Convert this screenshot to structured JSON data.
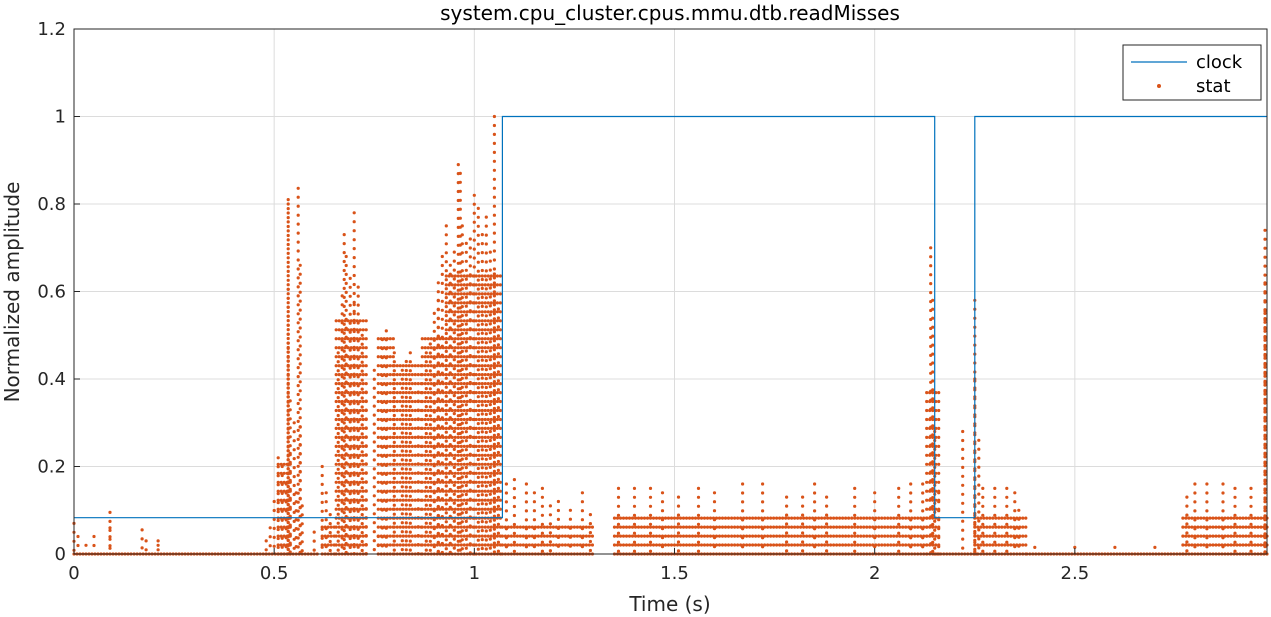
{
  "chart_data": {
    "type": "scatter",
    "title": "system.cpu_cluster.cpus.mmu.dtb.readMisses",
    "xlabel": "Time (s)",
    "ylabel": "Normalized amplitude",
    "xlim": [
      0,
      2.98
    ],
    "ylim": [
      0,
      1.2
    ],
    "x_ticks": [
      0,
      0.5,
      1,
      1.5,
      2,
      2.5
    ],
    "x_tick_labels": [
      "0",
      "0.5",
      "1",
      "1.5",
      "2",
      "2.5"
    ],
    "y_ticks": [
      0,
      0.2,
      0.4,
      0.6,
      0.8,
      1,
      1.2
    ],
    "y_tick_labels": [
      "0",
      "0.2",
      "0.4",
      "0.6",
      "0.8",
      "1",
      "1.2"
    ],
    "grid": true,
    "legend_position": "top-right",
    "colors": {
      "clock": "#0072BD",
      "stat": "#D95319"
    },
    "series": [
      {
        "name": "clock",
        "style": "step-line",
        "x": [
          0,
          1.07,
          1.07,
          2.15,
          2.15,
          2.25,
          2.25,
          2.98
        ],
        "values": [
          0.083,
          0.083,
          1,
          1,
          0.083,
          0.083,
          1,
          1
        ]
      },
      {
        "name": "stat",
        "style": "markers",
        "points": [
          [
            0.0,
            0.07
          ],
          [
            0.01,
            0.04
          ],
          [
            0.03,
            0.02
          ],
          [
            0.05,
            0.04
          ],
          [
            0.09,
            0.095
          ],
          [
            0.09,
            0.06
          ],
          [
            0.17,
            0.055
          ],
          [
            0.18,
            0.03
          ],
          [
            0.21,
            0.03
          ],
          [
            0.21,
            0.02
          ],
          [
            0.48,
            0.03
          ],
          [
            0.49,
            0.06
          ],
          [
            0.5,
            0.12
          ],
          [
            0.51,
            0.22
          ],
          [
            0.52,
            0.2
          ],
          [
            0.53,
            0.16
          ],
          [
            0.535,
            0.81
          ],
          [
            0.535,
            0.8
          ],
          [
            0.535,
            0.605
          ],
          [
            0.535,
            0.47
          ],
          [
            0.54,
            0.35
          ],
          [
            0.54,
            0.23
          ],
          [
            0.55,
            0.3
          ],
          [
            0.555,
            0.14
          ],
          [
            0.56,
            0.836
          ],
          [
            0.565,
            0.66
          ],
          [
            0.565,
            0.29
          ],
          [
            0.57,
            0.11
          ],
          [
            0.6,
            0.05
          ],
          [
            0.62,
            0.2
          ],
          [
            0.63,
            0.14
          ],
          [
            0.64,
            0.09
          ],
          [
            0.66,
            0.46
          ],
          [
            0.67,
            0.59
          ],
          [
            0.675,
            0.73
          ],
          [
            0.68,
            0.68
          ],
          [
            0.69,
            0.63
          ],
          [
            0.7,
            0.57
          ],
          [
            0.7,
            0.78
          ],
          [
            0.71,
            0.61
          ],
          [
            0.72,
            0.5
          ],
          [
            0.75,
            0.42
          ],
          [
            0.73,
            0.37
          ],
          [
            0.76,
            0.04
          ],
          [
            0.77,
            0.49
          ],
          [
            0.78,
            0.51
          ],
          [
            0.8,
            0.46
          ],
          [
            0.82,
            0.42
          ],
          [
            0.83,
            0.44
          ],
          [
            0.84,
            0.46
          ],
          [
            0.86,
            0.37
          ],
          [
            0.88,
            0.46
          ],
          [
            0.89,
            0.48
          ],
          [
            0.9,
            0.41
          ],
          [
            0.91,
            0.58
          ],
          [
            0.91,
            0.62
          ],
          [
            0.92,
            0.68
          ],
          [
            0.9,
            0.55
          ],
          [
            0.93,
            0.75
          ],
          [
            0.94,
            0.66
          ],
          [
            0.95,
            0.69
          ],
          [
            0.96,
            0.89
          ],
          [
            0.965,
            0.87
          ],
          [
            0.97,
            0.75
          ],
          [
            0.98,
            0.71
          ],
          [
            0.99,
            0.72
          ],
          [
            1.0,
            0.82
          ],
          [
            1.01,
            0.79
          ],
          [
            1.02,
            0.73
          ],
          [
            1.03,
            0.77
          ],
          [
            1.04,
            0.69
          ],
          [
            1.05,
            0.64
          ],
          [
            1.06,
            0.56
          ],
          [
            1.05,
            1.0
          ],
          [
            1.08,
            0.16
          ],
          [
            1.1,
            0.17
          ],
          [
            1.13,
            0.16
          ],
          [
            1.15,
            0.14
          ],
          [
            1.17,
            0.15
          ],
          [
            1.19,
            0.11
          ],
          [
            1.21,
            0.12
          ],
          [
            1.24,
            0.1
          ],
          [
            1.27,
            0.14
          ],
          [
            1.29,
            0.09
          ],
          [
            1.36,
            0.15
          ],
          [
            1.4,
            0.15
          ],
          [
            1.44,
            0.15
          ],
          [
            1.47,
            0.14
          ],
          [
            1.51,
            0.13
          ],
          [
            1.56,
            0.15
          ],
          [
            1.6,
            0.14
          ],
          [
            1.67,
            0.16
          ],
          [
            1.72,
            0.16
          ],
          [
            1.78,
            0.13
          ],
          [
            1.82,
            0.13
          ],
          [
            1.85,
            0.16
          ],
          [
            1.88,
            0.13
          ],
          [
            1.95,
            0.15
          ],
          [
            2.0,
            0.14
          ],
          [
            2.06,
            0.15
          ],
          [
            2.09,
            0.16
          ],
          [
            2.12,
            0.16
          ],
          [
            2.14,
            0.7
          ],
          [
            2.145,
            0.58
          ],
          [
            2.15,
            0.28
          ],
          [
            2.16,
            0.14
          ],
          [
            2.22,
            0.28
          ],
          [
            2.25,
            0.58
          ],
          [
            2.25,
            0.4
          ],
          [
            2.26,
            0.26
          ],
          [
            2.27,
            0.15
          ],
          [
            2.3,
            0.15
          ],
          [
            2.33,
            0.15
          ],
          [
            2.35,
            0.14
          ],
          [
            2.36,
            0.1
          ],
          [
            2.4,
            0.015
          ],
          [
            2.5,
            0.015
          ],
          [
            2.6,
            0.015
          ],
          [
            2.7,
            0.015
          ],
          [
            2.78,
            0.13
          ],
          [
            2.8,
            0.16
          ],
          [
            2.83,
            0.16
          ],
          [
            2.87,
            0.16
          ],
          [
            2.9,
            0.15
          ],
          [
            2.94,
            0.15
          ],
          [
            2.975,
            0.74
          ],
          [
            2.975,
            0.62
          ],
          [
            2.975,
            0.55
          ]
        ],
        "dense_bands": [
          {
            "x_from": 0.0,
            "x_to": 0.48,
            "y_max": 0.0
          },
          {
            "x_from": 0.48,
            "x_to": 0.61,
            "y_max": 0.0
          },
          {
            "x_from": 0.51,
            "x_to": 0.54,
            "y_max": 0.22
          },
          {
            "x_from": 0.62,
            "x_to": 0.65,
            "y_max": 0.07
          },
          {
            "x_from": 0.655,
            "x_to": 0.735,
            "y_max": 0.55
          },
          {
            "x_from": 0.76,
            "x_to": 0.8,
            "y_max": 0.51
          },
          {
            "x_from": 0.8,
            "x_to": 0.87,
            "y_max": 0.45
          },
          {
            "x_from": 0.87,
            "x_to": 0.93,
            "y_max": 0.5
          },
          {
            "x_from": 0.93,
            "x_to": 1.07,
            "y_max": 0.64
          },
          {
            "x_from": 1.07,
            "x_to": 1.3,
            "y_max": 0.08
          },
          {
            "x_from": 1.35,
            "x_to": 2.13,
            "y_max": 0.1
          },
          {
            "x_from": 2.13,
            "x_to": 2.16,
            "y_max": 0.38
          },
          {
            "x_from": 2.15,
            "x_to": 2.26,
            "y_max": 0.015
          },
          {
            "x_from": 2.25,
            "x_to": 2.38,
            "y_max": 0.1
          },
          {
            "x_from": 2.38,
            "x_to": 2.77,
            "y_max": 0.015
          },
          {
            "x_from": 2.77,
            "x_to": 2.98,
            "y_max": 0.1
          }
        ]
      }
    ]
  }
}
